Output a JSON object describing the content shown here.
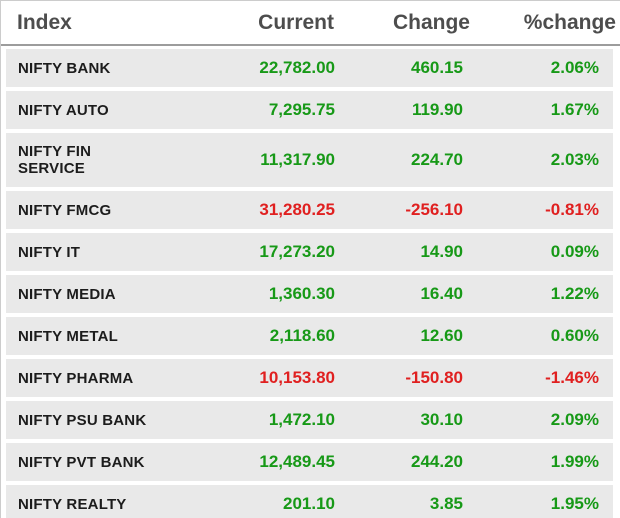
{
  "header": {
    "columns": [
      "Index",
      "Current",
      "Change",
      "%change"
    ]
  },
  "table": {
    "rows": [
      {
        "index": "NIFTY BANK",
        "current": "22,782.00",
        "change": "460.15",
        "pct": "2.06%",
        "trend": "up"
      },
      {
        "index": "NIFTY AUTO",
        "current": "7,295.75",
        "change": "119.90",
        "pct": "1.67%",
        "trend": "up"
      },
      {
        "index": "NIFTY FIN\nSERVICE",
        "current": "11,317.90",
        "change": "224.70",
        "pct": "2.03%",
        "trend": "up"
      },
      {
        "index": "NIFTY FMCG",
        "current": "31,280.25",
        "change": "-256.10",
        "pct": "-0.81%",
        "trend": "down"
      },
      {
        "index": "NIFTY IT",
        "current": "17,273.20",
        "change": "14.90",
        "pct": "0.09%",
        "trend": "up"
      },
      {
        "index": "NIFTY MEDIA",
        "current": "1,360.30",
        "change": "16.40",
        "pct": "1.22%",
        "trend": "up"
      },
      {
        "index": "NIFTY METAL",
        "current": "2,118.60",
        "change": "12.60",
        "pct": "0.60%",
        "trend": "up"
      },
      {
        "index": "NIFTY PHARMA",
        "current": "10,153.80",
        "change": "-150.80",
        "pct": "-1.46%",
        "trend": "down"
      },
      {
        "index": "NIFTY PSU BANK",
        "current": "1,472.10",
        "change": "30.10",
        "pct": "2.09%",
        "trend": "up"
      },
      {
        "index": "NIFTY PVT BANK",
        "current": "12,489.45",
        "change": "244.20",
        "pct": "1.99%",
        "trend": "up"
      },
      {
        "index": "NIFTY REALTY",
        "current": "201.10",
        "change": "3.85",
        "pct": "1.95%",
        "trend": "up"
      }
    ]
  },
  "colors": {
    "positive": "#179917",
    "negative": "#e02020",
    "header_text": "#4d4d4d",
    "label_text": "#1c1c1c",
    "row_background": "#e9e9e9",
    "header_separator": "#9c9c9c"
  },
  "chart_data": {
    "type": "table",
    "title": "NIFTY sector indices",
    "columns": [
      "Index",
      "Current",
      "Change",
      "%change"
    ],
    "rows": [
      [
        "NIFTY BANK",
        22782.0,
        460.15,
        2.06
      ],
      [
        "NIFTY AUTO",
        7295.75,
        119.9,
        1.67
      ],
      [
        "NIFTY FIN SERVICE",
        11317.9,
        224.7,
        2.03
      ],
      [
        "NIFTY FMCG",
        31280.25,
        -256.1,
        -0.81
      ],
      [
        "NIFTY IT",
        17273.2,
        14.9,
        0.09
      ],
      [
        "NIFTY MEDIA",
        1360.3,
        16.4,
        1.22
      ],
      [
        "NIFTY METAL",
        2118.6,
        12.6,
        0.6
      ],
      [
        "NIFTY PHARMA",
        10153.8,
        -150.8,
        -1.46
      ],
      [
        "NIFTY PSU BANK",
        1472.1,
        30.1,
        2.09
      ],
      [
        "NIFTY PVT BANK",
        12489.45,
        244.2,
        1.99
      ],
      [
        "NIFTY REALTY",
        201.1,
        3.85,
        1.95
      ]
    ]
  }
}
